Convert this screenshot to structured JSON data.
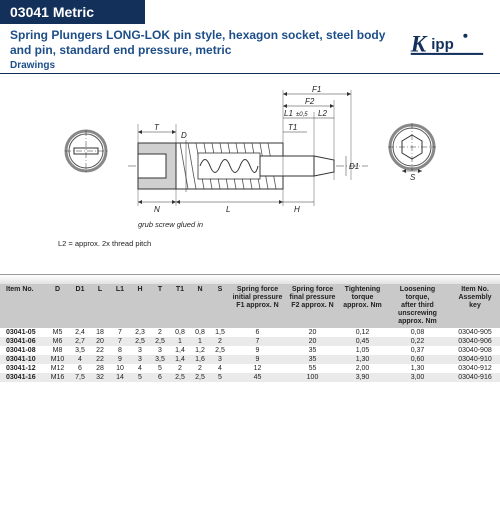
{
  "banner": "03041 Metric",
  "title": "Spring Plungers LONG-LOK pin style, hexagon socket, steel body and pin, standard end pressure, metric",
  "drawings_label": "Drawings",
  "logo_text": "Kipp",
  "diagram": {
    "labels": {
      "F1": "F1",
      "F2": "F2",
      "L1": "L1",
      "L1tol": "±0,5",
      "L2": "L2",
      "T": "T",
      "D": "D",
      "T1": "T1",
      "D1": "D1",
      "N": "N",
      "L": "L",
      "H": "H",
      "S": "S"
    },
    "note_glue": "grub screw glued in",
    "note_l2": "L2 = approx. 2x thread pitch"
  },
  "table": {
    "columns": [
      "Item No.",
      "D",
      "D1",
      "L",
      "L1",
      "H",
      "T",
      "T1",
      "N",
      "S",
      "Spring force\ninitial pressure\nF1 approx. N",
      "Spring force\nfinal pressure\nF2 approx. N",
      "Tightening\ntorque\napprox. Nm",
      "Loosening torque,\nafter third unscrewing\napprox. Nm",
      "Item No.\nAssembly\nkey"
    ],
    "rows": [
      [
        "03041-05",
        "M5",
        "2,4",
        "18",
        "7",
        "2,3",
        "2",
        "0,8",
        "0,8",
        "1,5",
        "6",
        "20",
        "0,12",
        "0,08",
        "03040-905"
      ],
      [
        "03041-06",
        "M6",
        "2,7",
        "20",
        "7",
        "2,5",
        "2,5",
        "1",
        "1",
        "2",
        "7",
        "20",
        "0,45",
        "0,22",
        "03040-906"
      ],
      [
        "03041-08",
        "M8",
        "3,5",
        "22",
        "8",
        "3",
        "3",
        "1,4",
        "1,2",
        "2,5",
        "9",
        "35",
        "1,05",
        "0,37",
        "03040-908"
      ],
      [
        "03041-10",
        "M10",
        "4",
        "22",
        "9",
        "3",
        "3,5",
        "1,4",
        "1,6",
        "3",
        "9",
        "35",
        "1,30",
        "0,60",
        "03040-910"
      ],
      [
        "03041-12",
        "M12",
        "6",
        "28",
        "10",
        "4",
        "5",
        "2",
        "2",
        "4",
        "12",
        "55",
        "2,00",
        "1,30",
        "03040-912"
      ],
      [
        "03041-16",
        "M16",
        "7,5",
        "32",
        "14",
        "5",
        "6",
        "2,5",
        "2,5",
        "5",
        "45",
        "100",
        "3,90",
        "3,00",
        "03040-916"
      ]
    ],
    "col_widths": [
      "9%",
      "5%",
      "4%",
      "4%",
      "4%",
      "4%",
      "4%",
      "4%",
      "4%",
      "4%",
      "11%",
      "11%",
      "9%",
      "13%",
      "10%"
    ]
  },
  "colors": {
    "banner_bg": "#13305b",
    "title_color": "#1d4e89",
    "header_bg": "#c9c9c9",
    "row_alt_bg": "#eaeaea",
    "hatch": "#9aa0a6"
  }
}
